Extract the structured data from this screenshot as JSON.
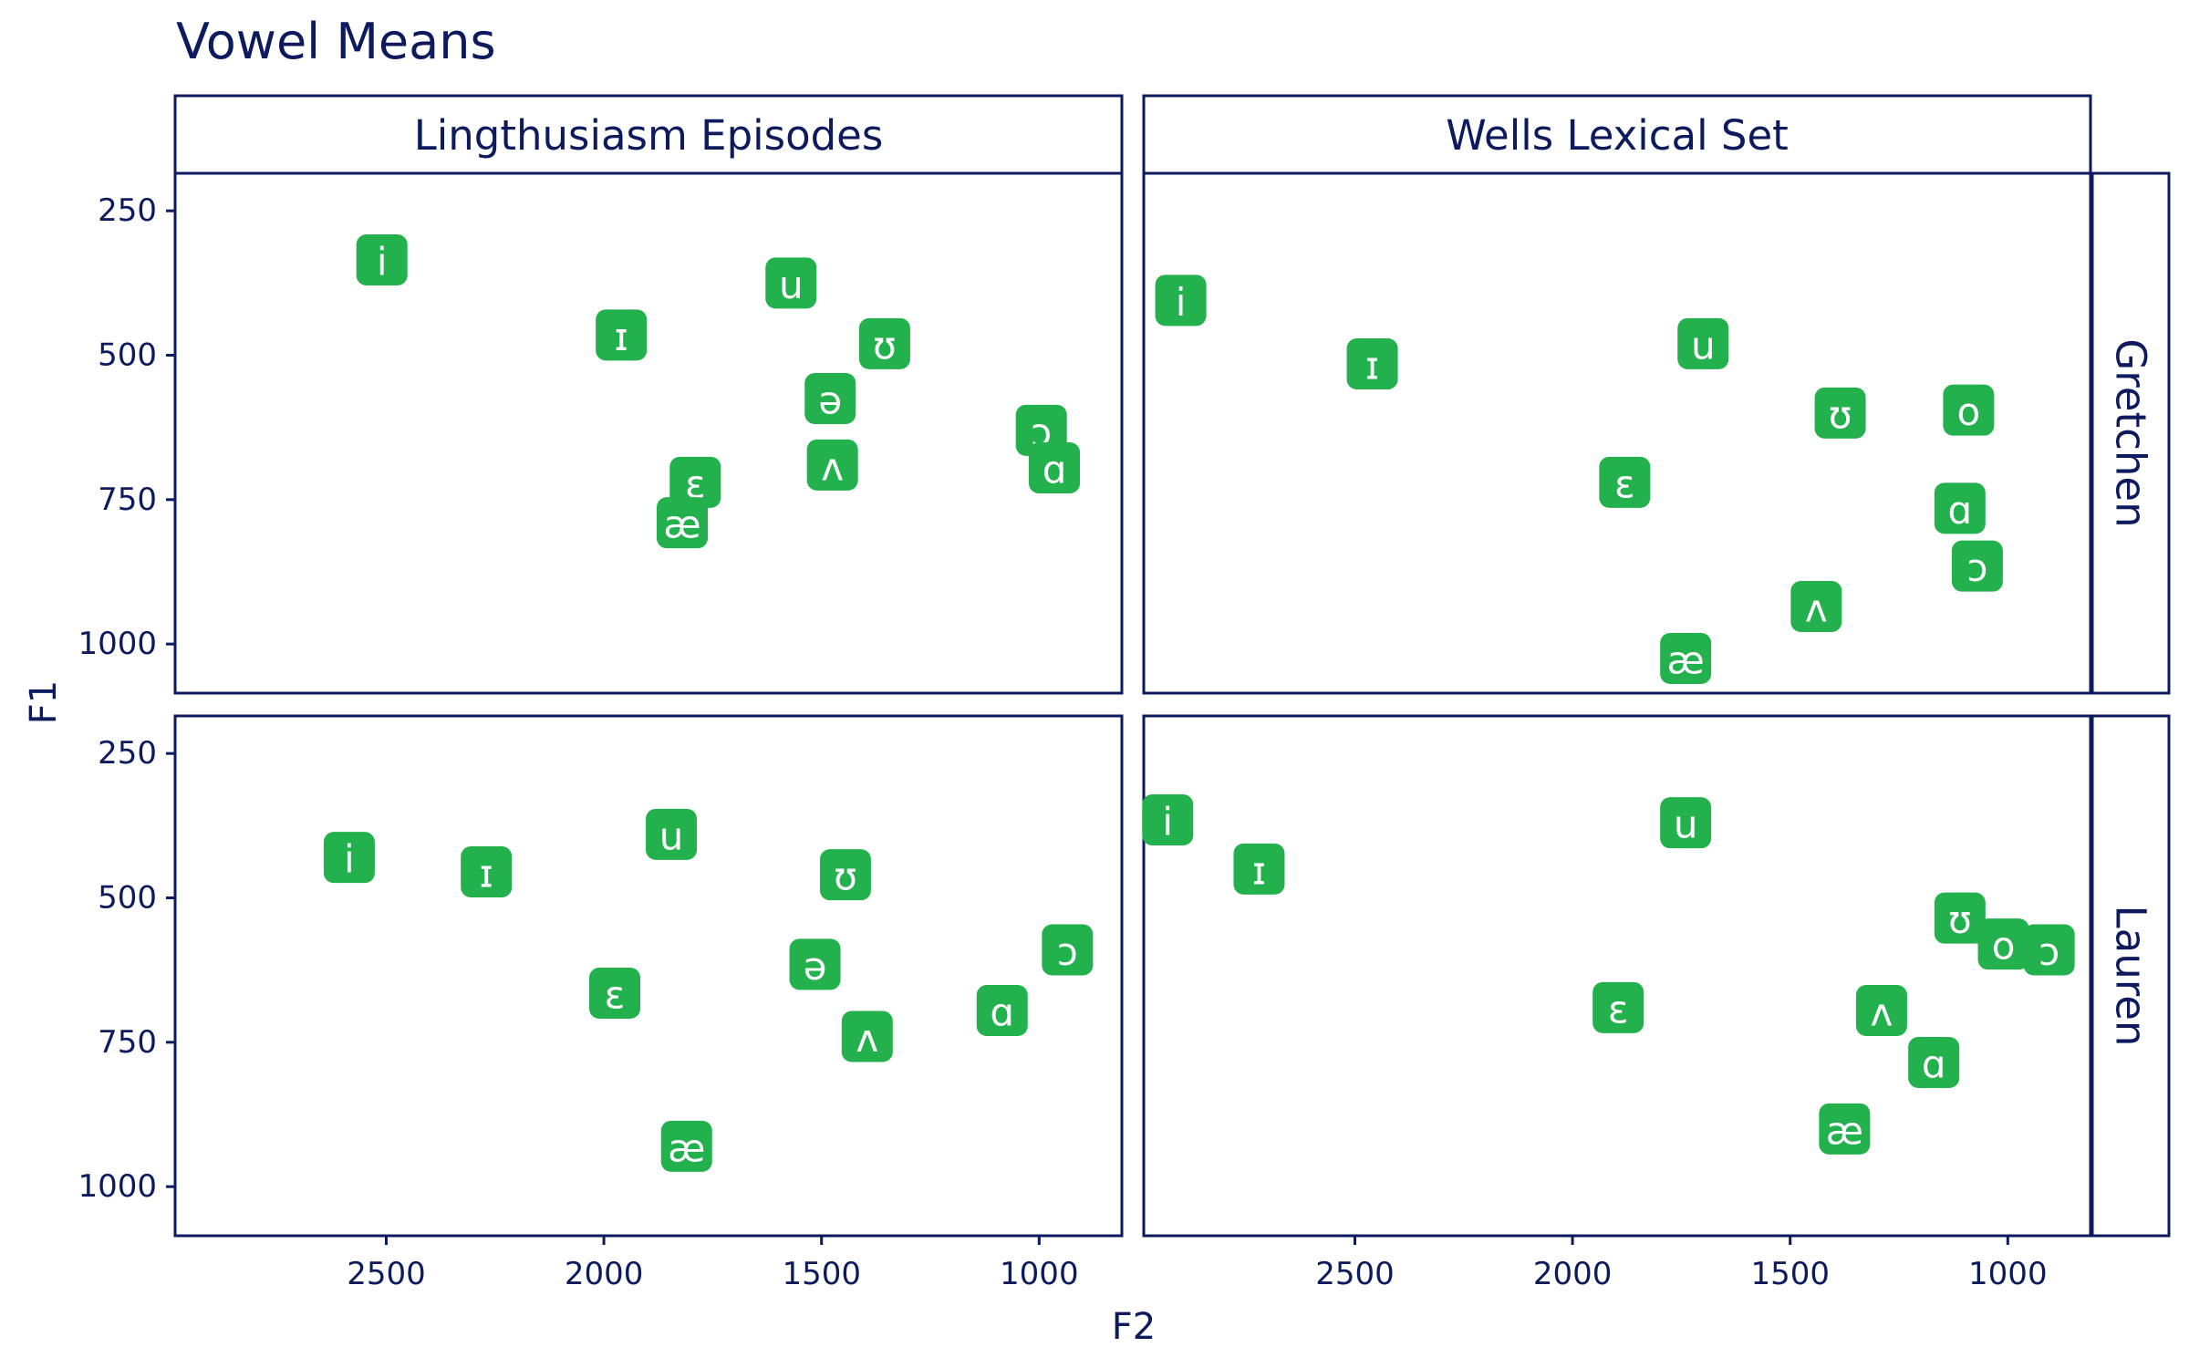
{
  "chart_data": {
    "type": "scatter",
    "title": "Vowel Means",
    "xlabel": "F2",
    "ylabel": "F1",
    "x_reversed": true,
    "y_reversed": true,
    "xlim": [
      2985,
      810
    ],
    "ylim": [
      185,
      1085
    ],
    "x_ticks": [
      2500,
      2000,
      1500,
      1000
    ],
    "y_ticks": [
      250,
      500,
      750,
      1000
    ],
    "marker_color": "#22b14c",
    "text_color": "#0d1a5e",
    "columns": [
      "Lingthusiasm Episodes",
      "Wells Lexical Set"
    ],
    "rows": [
      "Gretchen",
      "Lauren"
    ],
    "panels": [
      {
        "column": "Lingthusiasm Episodes",
        "row": "Gretchen",
        "points": [
          {
            "vowel": "i",
            "F2": 2510,
            "F1": 335
          },
          {
            "vowel": "u",
            "F2": 1570,
            "F1": 375
          },
          {
            "vowel": "ɪ",
            "F2": 1960,
            "F1": 465
          },
          {
            "vowel": "ʊ",
            "F2": 1355,
            "F1": 480
          },
          {
            "vowel": "ə",
            "F2": 1480,
            "F1": 575
          },
          {
            "vowel": "ɔ",
            "F2": 995,
            "F1": 630
          },
          {
            "vowel": "ʌ",
            "F2": 1475,
            "F1": 690
          },
          {
            "vowel": "ɑ",
            "F2": 965,
            "F1": 695
          },
          {
            "vowel": "ɛ",
            "F2": 1790,
            "F1": 720
          },
          {
            "vowel": "æ",
            "F2": 1820,
            "F1": 790
          }
        ]
      },
      {
        "column": "Wells Lexical Set",
        "row": "Gretchen",
        "points": [
          {
            "vowel": "i",
            "F2": 2900,
            "F1": 405
          },
          {
            "vowel": "u",
            "F2": 1700,
            "F1": 480
          },
          {
            "vowel": "ɪ",
            "F2": 2460,
            "F1": 515
          },
          {
            "vowel": "ʊ",
            "F2": 1385,
            "F1": 600
          },
          {
            "vowel": "o",
            "F2": 1090,
            "F1": 595
          },
          {
            "vowel": "ɛ",
            "F2": 1880,
            "F1": 720
          },
          {
            "vowel": "ɑ",
            "F2": 1110,
            "F1": 765
          },
          {
            "vowel": "ɔ",
            "F2": 1070,
            "F1": 865
          },
          {
            "vowel": "ʌ",
            "F2": 1440,
            "F1": 935
          },
          {
            "vowel": "æ",
            "F2": 1740,
            "F1": 1025
          }
        ]
      },
      {
        "column": "Lingthusiasm Episodes",
        "row": "Lauren",
        "points": [
          {
            "vowel": "i",
            "F2": 2585,
            "F1": 430
          },
          {
            "vowel": "u",
            "F2": 1845,
            "F1": 390
          },
          {
            "vowel": "ɪ",
            "F2": 2270,
            "F1": 455
          },
          {
            "vowel": "ʊ",
            "F2": 1445,
            "F1": 460
          },
          {
            "vowel": "ə",
            "F2": 1515,
            "F1": 615
          },
          {
            "vowel": "ɔ",
            "F2": 935,
            "F1": 590
          },
          {
            "vowel": "ɛ",
            "F2": 1975,
            "F1": 665
          },
          {
            "vowel": "ɑ",
            "F2": 1085,
            "F1": 695
          },
          {
            "vowel": "ʌ",
            "F2": 1395,
            "F1": 740
          },
          {
            "vowel": "æ",
            "F2": 1810,
            "F1": 930
          }
        ]
      },
      {
        "column": "Wells Lexical Set",
        "row": "Lauren",
        "points": [
          {
            "vowel": "i",
            "F2": 2930,
            "F1": 365
          },
          {
            "vowel": "u",
            "F2": 1740,
            "F1": 370
          },
          {
            "vowel": "ɪ",
            "F2": 2720,
            "F1": 450
          },
          {
            "vowel": "ʊ",
            "F2": 1110,
            "F1": 535
          },
          {
            "vowel": "o",
            "F2": 1010,
            "F1": 580
          },
          {
            "vowel": "ɔ",
            "F2": 905,
            "F1": 590
          },
          {
            "vowel": "ɛ",
            "F2": 1895,
            "F1": 690
          },
          {
            "vowel": "ʌ",
            "F2": 1290,
            "F1": 695
          },
          {
            "vowel": "ɑ",
            "F2": 1170,
            "F1": 785
          },
          {
            "vowel": "æ",
            "F2": 1375,
            "F1": 900
          }
        ]
      }
    ]
  }
}
